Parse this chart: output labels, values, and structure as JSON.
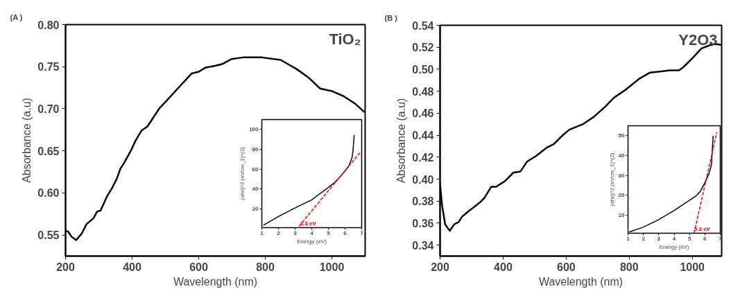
{
  "chart_data": [
    {
      "type": "line",
      "title": "(A )",
      "xlabel": "Wavelength (nm)",
      "ylabel": "Absorbance (a.u)",
      "annotations": [
        "TiO₂"
      ],
      "xlim": [
        200,
        1100
      ],
      "ylim": [
        0.525,
        0.8
      ],
      "xticks": [
        200,
        400,
        600,
        800,
        1000
      ],
      "yticks": [
        {
          "value": 0.55,
          "label": "0.55"
        },
        {
          "value": 0.6,
          "label": "0.60"
        },
        {
          "value": 0.65,
          "label": "0.65"
        },
        {
          "value": 0.7,
          "label": "0.70"
        },
        {
          "value": 0.75,
          "label": "0.75"
        },
        {
          "value": 0.8,
          "label": "0.80"
        }
      ],
      "line_style": "solid",
      "series": [
        {
          "color": "#000000",
          "x": [
            200,
            208,
            218,
            232,
            249,
            263,
            284,
            295,
            305,
            326,
            340,
            354,
            365,
            375,
            396,
            410,
            428,
            446,
            481,
            509,
            551,
            579,
            600,
            621,
            649,
            670,
            698,
            733,
            790,
            846,
            895,
            930,
            965,
            1000,
            1035,
            1070,
            1098
          ],
          "values": [
            0.555,
            0.554,
            0.548,
            0.544,
            0.552,
            0.563,
            0.57,
            0.578,
            0.579,
            0.597,
            0.606,
            0.617,
            0.629,
            0.635,
            0.65,
            0.662,
            0.674,
            0.679,
            0.7,
            0.712,
            0.73,
            0.742,
            0.744,
            0.749,
            0.751,
            0.753,
            0.759,
            0.761,
            0.761,
            0.758,
            0.747,
            0.737,
            0.724,
            0.721,
            0.715,
            0.706,
            0.696
          ]
        }
      ]
    },
    {
      "type": "line",
      "xlabel": "Energy (eV)",
      "ylabel": "(αhν)^2 (eVcm_1)^(2)",
      "annotations": [
        {
          "text": "3.3 eV",
          "x": 3.3,
          "y": 1
        }
      ],
      "xlim": [
        1,
        7
      ],
      "ylim": [
        1,
        110
      ],
      "xticks": [
        1,
        2,
        3,
        4,
        5,
        6,
        7
      ],
      "yticks": [
        20,
        40,
        60,
        80,
        100
      ],
      "series": [
        {
          "color": "#000000",
          "line_style": "solid",
          "x": [
            1.1,
            2.0,
            3.05,
            3.5,
            4.0,
            4.63,
            5.0,
            5.4,
            5.8,
            6.05,
            6.24,
            6.43,
            6.48,
            6.55
          ],
          "values": [
            3.5,
            12.3,
            21.4,
            25,
            29,
            37,
            41.6,
            46.9,
            54,
            59.3,
            63.4,
            72.2,
            79,
            94.5
          ]
        },
        {
          "color": "#ff0000",
          "line_style": "dashed",
          "x": [
            3.23,
            6.89
          ],
          "values": [
            2.3,
            76.5
          ]
        }
      ]
    },
    {
      "type": "line",
      "title": "(B )",
      "xlabel": "Wavelength (nm)",
      "ylabel": "Absorbance (a.u)",
      "annotations": [
        "Y2O3"
      ],
      "xlim": [
        200,
        1093
      ],
      "ylim": [
        0.33,
        0.54
      ],
      "xticks": [
        200,
        400,
        600,
        800,
        1000
      ],
      "yticks": [
        {
          "value": 0.34,
          "label": "0.34"
        },
        {
          "value": 0.36,
          "label": "0.36"
        },
        {
          "value": 0.38,
          "label": "0.38"
        },
        {
          "value": 0.4,
          "label": "0.40"
        },
        {
          "value": 0.42,
          "label": "0.42"
        },
        {
          "value": 0.44,
          "label": "0.44"
        },
        {
          "value": 0.46,
          "label": "0.46"
        },
        {
          "value": 0.48,
          "label": "0.48"
        },
        {
          "value": 0.5,
          "label": "0.50"
        },
        {
          "value": 0.52,
          "label": "0.52"
        },
        {
          "value": 0.54,
          "label": "0.54"
        }
      ],
      "line_style": "solid",
      "series": [
        {
          "color": "#000000",
          "x": [
            200,
            206,
            216,
            223,
            231,
            245,
            259,
            270,
            291,
            305,
            327,
            341,
            362,
            377,
            405,
            433,
            455,
            476,
            504,
            540,
            561,
            589,
            610,
            653,
            689,
            724,
            751,
            787,
            830,
            866,
            901,
            929,
            958,
            972,
            1000,
            1029,
            1057,
            1075,
            1093
          ],
          "values": [
            0.396,
            0.377,
            0.359,
            0.356,
            0.353,
            0.359,
            0.361,
            0.366,
            0.371,
            0.374,
            0.379,
            0.383,
            0.393,
            0.393,
            0.398,
            0.406,
            0.407,
            0.416,
            0.421,
            0.429,
            0.432,
            0.44,
            0.445,
            0.45,
            0.457,
            0.466,
            0.474,
            0.481,
            0.491,
            0.497,
            0.498,
            0.499,
            0.499,
            0.502,
            0.51,
            0.519,
            0.522,
            0.523,
            0.522
          ]
        }
      ]
    },
    {
      "type": "line",
      "xlabel": "Energy (eV)",
      "ylabel": "(αhν)^2 (eVcm_1)^(2)",
      "annotations": [
        {
          "text": "5.3 eV",
          "x": 5.3,
          "y": 1
        }
      ],
      "xlim": [
        1,
        7
      ],
      "ylim": [
        1,
        55
      ],
      "xticks": [
        1,
        2,
        3,
        4,
        5,
        6,
        7
      ],
      "yticks": [
        10,
        20,
        30,
        40,
        50
      ],
      "series": [
        {
          "color": "#000000",
          "line_style": "solid",
          "x": [
            1.08,
            1.98,
            2.94,
            3.99,
            4.95,
            5.42,
            5.71,
            6.0,
            6.28,
            6.43,
            6.47,
            6.54
          ],
          "values": [
            1.6,
            4.0,
            7.6,
            12.4,
            17.3,
            19.7,
            22.1,
            26.4,
            31.2,
            35.5,
            40.9,
            50
          ]
        },
        {
          "color": "#ff0000",
          "line_style": "dashed",
          "x": [
            5.3,
            6.78
          ],
          "values": [
            1,
            51.8
          ]
        }
      ]
    }
  ]
}
